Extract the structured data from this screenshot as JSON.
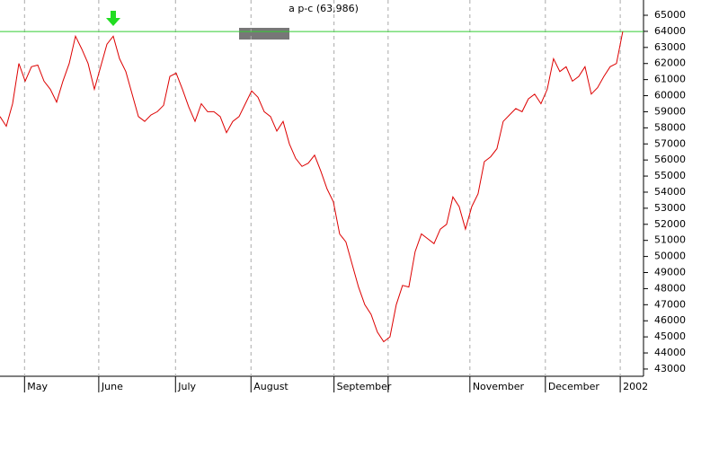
{
  "chart_data": {
    "type": "line",
    "title": "a p-c (63,986)",
    "color": "#dd0000",
    "values": [
      58700,
      58100,
      59500,
      62000,
      60900,
      61800,
      61900,
      60900,
      60400,
      59600,
      60900,
      62000,
      63700,
      62900,
      62000,
      60400,
      61800,
      63200,
      63700,
      62300,
      61500,
      60100,
      58700,
      58400,
      58800,
      59000,
      59400,
      61200,
      61400,
      60400,
      59300,
      58400,
      59500,
      59000,
      59000,
      58700,
      57700,
      58400,
      58700,
      59500,
      60300,
      59900,
      59000,
      58700,
      57800,
      58400,
      57000,
      56100,
      55600,
      55800,
      56300,
      55300,
      54200,
      53400,
      51400,
      50900,
      49500,
      48100,
      47000,
      46400,
      45300,
      44700,
      45000,
      47000,
      48200,
      48100,
      50300,
      51400,
      51100,
      50800,
      51700,
      52000,
      53700,
      53100,
      51700,
      53100,
      53900,
      55900,
      56200,
      56700,
      58400,
      58800,
      59200,
      59000,
      59800,
      60100,
      59500,
      60400,
      62300,
      61500,
      61800,
      60900,
      61200,
      61800,
      60100,
      60500,
      61200,
      61800,
      62000,
      63986
    ],
    "xlim": [
      0,
      102.3
    ],
    "xticks": [
      {
        "value": 3.9,
        "label": "May"
      },
      {
        "value": 15.7,
        "label": "June"
      },
      {
        "value": 27.9,
        "label": "July"
      },
      {
        "value": 39.9,
        "label": "August"
      },
      {
        "value": 53.1,
        "label": "September"
      },
      {
        "value": 61.7,
        "label": null
      },
      {
        "value": 74.7,
        "label": "November"
      },
      {
        "value": 86.7,
        "label": "December"
      },
      {
        "value": 98.6,
        "label": "2002"
      }
    ],
    "ylim": [
      42550,
      65950
    ],
    "yticks": [
      43000,
      44000,
      45000,
      46000,
      47000,
      48000,
      49000,
      50000,
      51000,
      52000,
      53000,
      54000,
      55000,
      56000,
      57000,
      58000,
      59000,
      60000,
      61000,
      62000,
      63000,
      64000,
      65000
    ],
    "reference_line": {
      "value": 63986,
      "color": "#33cc33"
    },
    "grid": true
  }
}
